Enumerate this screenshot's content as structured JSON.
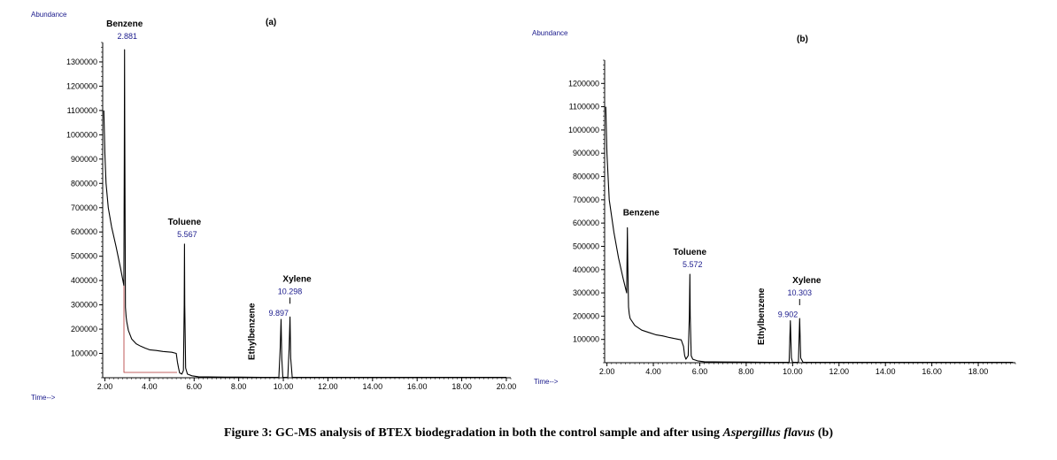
{
  "caption": {
    "prefix": "Figure 3: GC-MS analysis of BTEX biodegradation in both the control sample and after using ",
    "species": "Aspergillus flavus",
    "suffix": " (b)"
  },
  "chart_data": [
    {
      "type": "line",
      "panel_label": "(a)",
      "ylabel": "Abundance",
      "xlabel": "Time-->",
      "xlim": [
        1.9,
        20.2
      ],
      "ylim": [
        0,
        1380000
      ],
      "x_ticks": [
        "2.00",
        "4.00",
        "6.00",
        "8.00",
        "10.00",
        "12.00",
        "14.00",
        "16.00",
        "18.00",
        "20.00"
      ],
      "y_ticks": [
        "100000",
        "200000",
        "300000",
        "400000",
        "500000",
        "600000",
        "700000",
        "800000",
        "900000",
        "1000000",
        "1100000",
        "1200000",
        "1300000"
      ],
      "trace": {
        "x": [
          1.95,
          2.0,
          2.05,
          2.15,
          2.3,
          2.5,
          2.7,
          2.85,
          2.87,
          2.881,
          2.89,
          2.92,
          2.95,
          2.98,
          3.05,
          3.2,
          3.4,
          3.6,
          3.8,
          4.0,
          4.3,
          4.6,
          5.0,
          5.2,
          5.25,
          5.3,
          5.35,
          5.45,
          5.52,
          5.555,
          5.567,
          5.58,
          5.62,
          5.7,
          5.9,
          6.2,
          7.0,
          8.0,
          9.0,
          9.8,
          9.86,
          9.897,
          9.93,
          9.98,
          10.2,
          10.26,
          10.298,
          10.33,
          10.4,
          12.0,
          14.0,
          16.0,
          18.0,
          20.0
        ],
        "y": [
          1100000,
          920000,
          800000,
          700000,
          620000,
          540000,
          450000,
          380000,
          900000,
          1350000,
          1060000,
          290000,
          250000,
          230000,
          195000,
          160000,
          140000,
          130000,
          122000,
          115000,
          112000,
          108000,
          105000,
          100000,
          65000,
          40000,
          20000,
          15000,
          30000,
          300000,
          550000,
          300000,
          40000,
          15000,
          8000,
          4000,
          3000,
          2500,
          2000,
          2000,
          120000,
          240000,
          80000,
          2000,
          2000,
          120000,
          250000,
          80000,
          2000,
          1500,
          1500,
          1500,
          1500,
          1500
        ]
      },
      "peaks": [
        {
          "name": "Benzene",
          "rt": "2.881",
          "x": 2.881,
          "y": 1350000
        },
        {
          "name": "Toluene",
          "rt": "5.567",
          "x": 5.567,
          "y": 550000
        },
        {
          "name": "Ethylbenzene",
          "rt": "9.897",
          "x": 9.897,
          "y": 240000
        },
        {
          "name": "Xylene",
          "rt": "10.298",
          "x": 10.298,
          "y": 250000
        }
      ]
    },
    {
      "type": "line",
      "panel_label": "(b)",
      "ylabel": "Abundance",
      "xlabel": "Time-->",
      "xlim": [
        1.9,
        19.6
      ],
      "ylim": [
        0,
        1300000
      ],
      "x_ticks": [
        "2.00",
        "4.00",
        "6.00",
        "8.00",
        "10.00",
        "12.00",
        "14.00",
        "16.00",
        "18.00"
      ],
      "y_ticks": [
        "100000",
        "200000",
        "300000",
        "400000",
        "500000",
        "600000",
        "700000",
        "800000",
        "900000",
        "1000000",
        "1100000",
        "1200000"
      ],
      "trace": {
        "x": [
          1.95,
          2.0,
          2.1,
          2.3,
          2.5,
          2.7,
          2.85,
          2.88,
          2.9,
          2.93,
          2.96,
          3.0,
          3.2,
          3.5,
          3.8,
          4.1,
          4.4,
          4.7,
          5.0,
          5.2,
          5.3,
          5.35,
          5.4,
          5.5,
          5.55,
          5.572,
          5.59,
          5.63,
          5.7,
          5.9,
          6.2,
          7.0,
          8.0,
          9.0,
          9.85,
          9.902,
          9.95,
          10.0,
          10.25,
          10.303,
          10.35,
          10.45,
          12.0,
          14.0,
          16.0,
          18.0,
          19.5
        ],
        "y": [
          1100000,
          900000,
          700000,
          560000,
          450000,
          360000,
          300000,
          580000,
          420000,
          240000,
          210000,
          190000,
          160000,
          140000,
          130000,
          120000,
          115000,
          108000,
          102000,
          98000,
          70000,
          30000,
          15000,
          30000,
          200000,
          380000,
          200000,
          30000,
          15000,
          8000,
          4000,
          3000,
          2500,
          2000,
          2000,
          180000,
          20000,
          2000,
          2000,
          190000,
          20000,
          2000,
          1500,
          1500,
          1500,
          1500,
          1500
        ]
      },
      "peaks": [
        {
          "name": "Benzene",
          "rt": "",
          "x": 2.88,
          "y": 580000
        },
        {
          "name": "Toluene",
          "rt": "5.572",
          "x": 5.572,
          "y": 380000
        },
        {
          "name": "Ethylbenzene",
          "rt": "9.902",
          "x": 9.902,
          "y": 180000
        },
        {
          "name": "Xylene",
          "rt": "10.303",
          "x": 10.303,
          "y": 190000
        }
      ]
    }
  ]
}
